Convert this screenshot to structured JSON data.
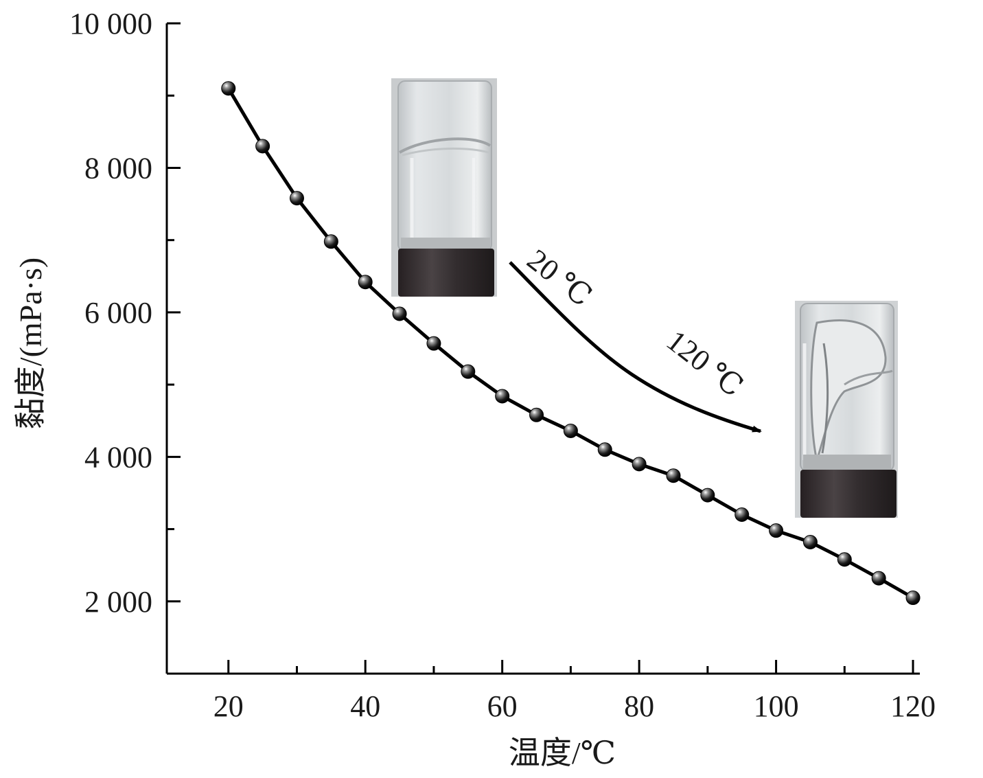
{
  "chart_data": {
    "type": "line",
    "title": "",
    "xlabel": "温度/℃",
    "ylabel": "黏度/(mPa·s)",
    "xlim": [
      11,
      121
    ],
    "ylim": [
      1000,
      10000
    ],
    "x_ticks": [
      20,
      40,
      60,
      80,
      100,
      120
    ],
    "x_tick_labels": [
      "20",
      "40",
      "60",
      "80",
      "100",
      "120"
    ],
    "y_ticks": [
      2000,
      4000,
      6000,
      8000,
      10000
    ],
    "y_tick_labels": [
      "2 000",
      "4 000",
      "6 000",
      "8 000",
      "10 000"
    ],
    "grid": false,
    "legend": "none",
    "series": [
      {
        "marker": "sphere",
        "color": "#000000",
        "x": [
          20,
          25,
          30,
          35,
          40,
          45,
          50,
          55,
          60,
          65,
          70,
          75,
          80,
          85,
          90,
          95,
          100,
          105,
          110,
          115,
          120
        ],
        "y": [
          9100,
          8300,
          7580,
          6980,
          6420,
          5980,
          5570,
          5180,
          4840,
          4580,
          4360,
          4100,
          3900,
          3740,
          3470,
          3200,
          2980,
          2820,
          2580,
          2320,
          2050
        ]
      }
    ],
    "annotations": {
      "start_label": "20 ℃",
      "end_label": "120 ℃"
    }
  }
}
